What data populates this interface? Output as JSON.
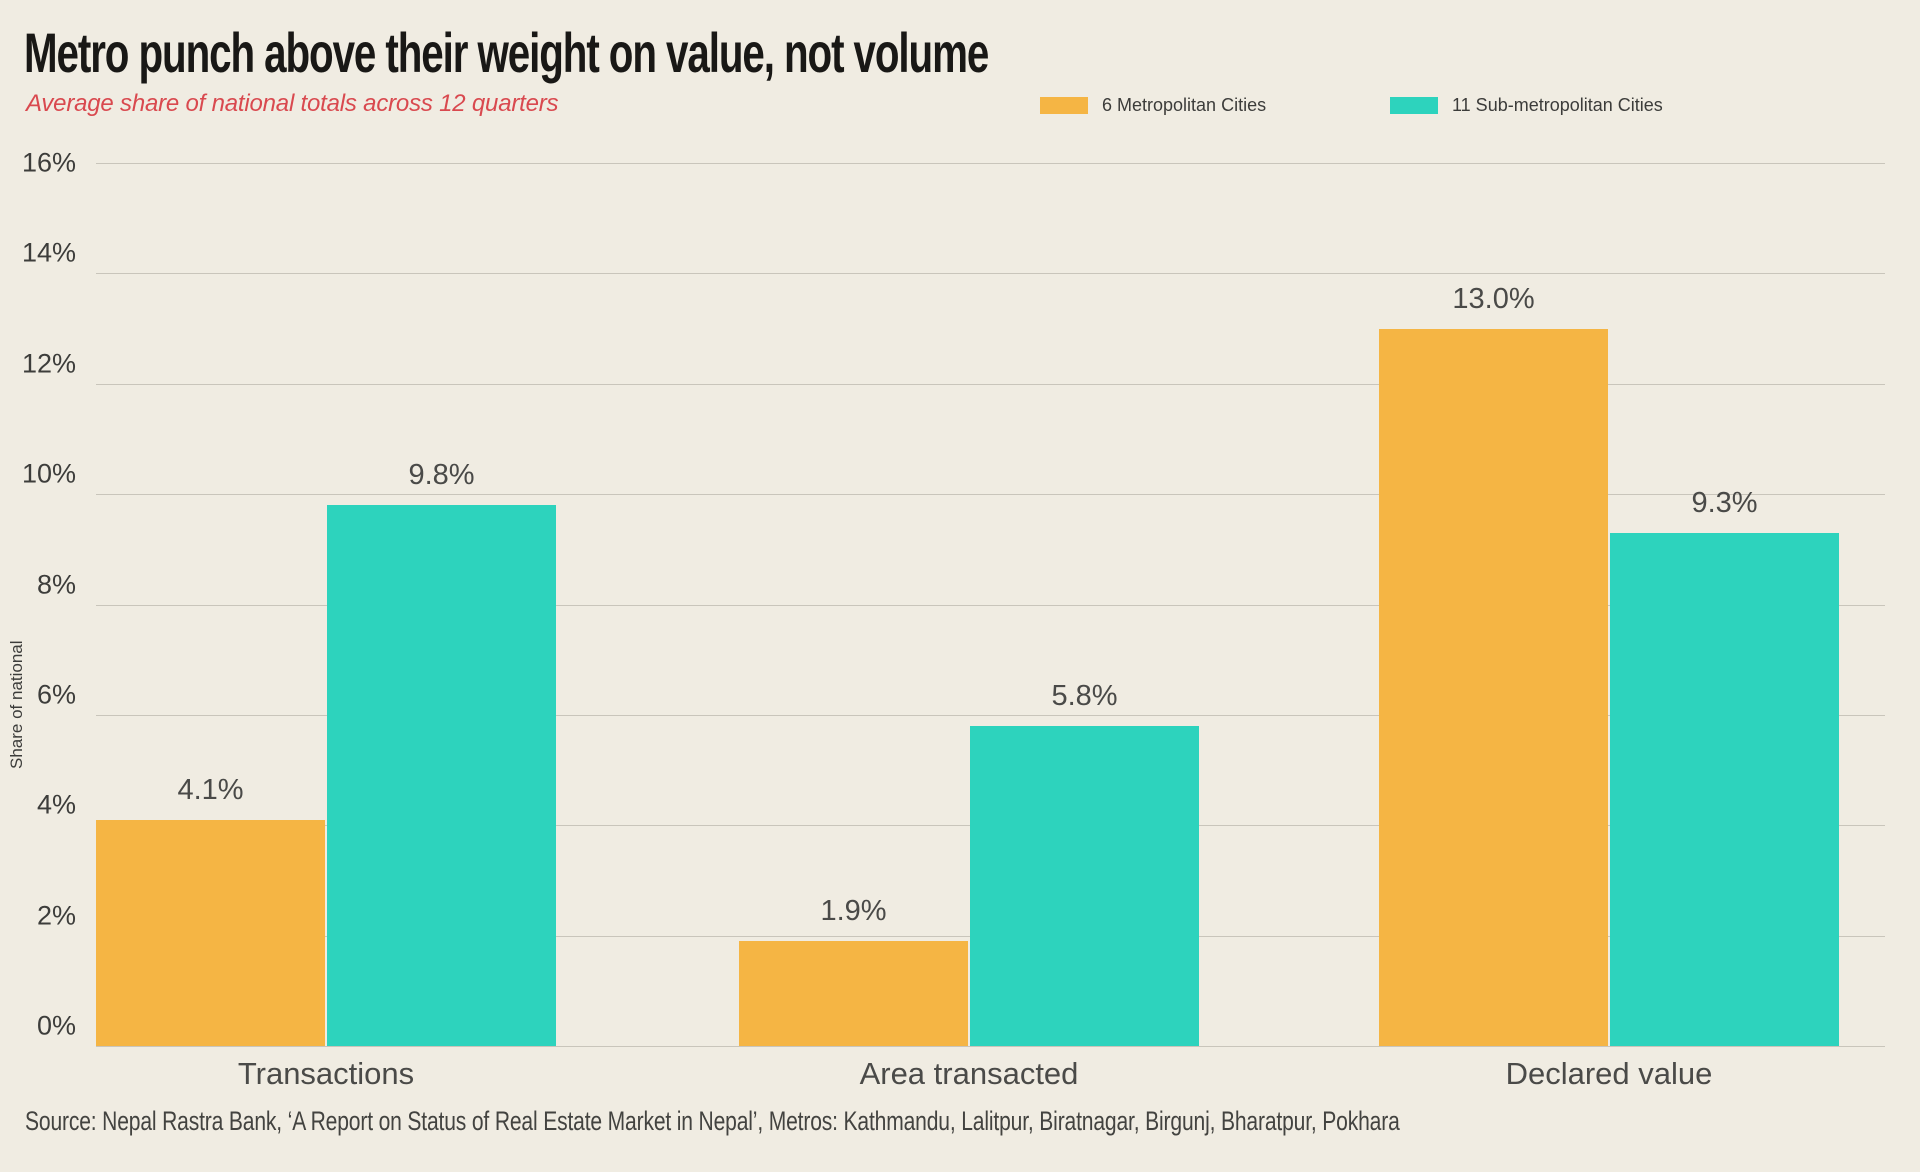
{
  "title": "Metro punch above their weight on value, not volume",
  "subtitle": "Average share of national totals across 12 quarters",
  "source": "Source: Nepal Rastra Bank, ‘A Report on Status of Real Estate Market in Nepal’, Metros: Kathmandu, Lalitpur, Biratnagar, Birgunj, Bharatpur, Pokhara",
  "colors": {
    "background": "#f0ece2",
    "metro_orange": "#f5b544",
    "submetro_teal": "#2dd3bd",
    "gridline": "#c9c5bb",
    "subtitle_red": "#d9494f",
    "text_dark": "#3c3c3a",
    "label_gray": "#4a4a48"
  },
  "chart_data": {
    "type": "bar",
    "title": "Metro punch above their weight on value, not volume",
    "subtitle": "Average share of national totals across 12 quarters",
    "categories": [
      "Transactions",
      "Area transacted",
      "Declared value"
    ],
    "series": [
      {
        "name": "6 Metropolitan Cities",
        "color": "#f5b544",
        "values": [
          4.1,
          1.9,
          13.0
        ],
        "labels": [
          "4.1%",
          "1.9%",
          "13.0%"
        ]
      },
      {
        "name": "11 Sub-metropolitan Cities",
        "color": "#2dd3bd",
        "values": [
          9.8,
          5.8,
          9.3
        ],
        "labels": [
          "9.8%",
          "5.8%",
          "9.3%"
        ]
      }
    ],
    "xlabel": "",
    "ylabel": "Share of national",
    "ylim": [
      0,
      16
    ],
    "yticks": [
      "16%",
      "14%",
      "12%",
      "10%",
      "8%",
      "6%",
      "4%",
      "2%",
      "0%"
    ],
    "grid": true,
    "legend_position": "top-right"
  }
}
